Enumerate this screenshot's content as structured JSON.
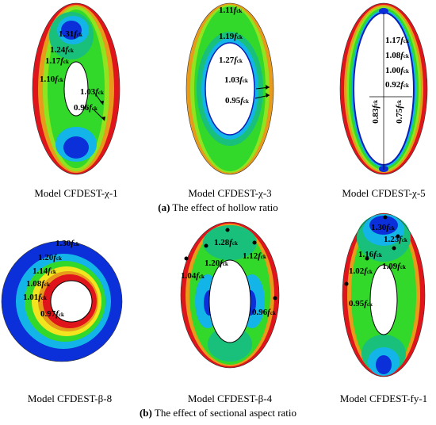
{
  "colors": {
    "red": "#e0141b",
    "orange": "#e89a1a",
    "yellow": "#f2e51f",
    "lime": "#8fe31f",
    "green": "#32d82a",
    "teal": "#18c07c",
    "cyan": "#13b5e8",
    "blue": "#0b2fd8",
    "navy": "#0a1fb8",
    "white": "#ffffff"
  },
  "panel_a": {
    "caption_prefix": "(a)",
    "caption_text": " The effect of hollow ratio",
    "models": [
      {
        "label": "Model CFDEST-χ-1",
        "annotations": [
          {
            "num": "1.31",
            "sub": "ck"
          },
          {
            "num": "1.24",
            "sub": "ck"
          },
          {
            "num": "1.17",
            "sub": "ck"
          },
          {
            "num": "1.10",
            "sub": "ck"
          },
          {
            "num": "1.03",
            "sub": "ck"
          },
          {
            "num": "0.96",
            "sub": "ck"
          }
        ]
      },
      {
        "label": "Model CFDEST-χ-3",
        "annotations": [
          {
            "num": "1.11",
            "sub": "ck"
          },
          {
            "num": "1.19",
            "sub": "ck"
          },
          {
            "num": "1.27",
            "sub": "ck"
          },
          {
            "num": "1.03",
            "sub": "ck"
          },
          {
            "num": "0.95",
            "sub": "ck"
          }
        ]
      },
      {
        "label": "Model CFDEST-χ-5",
        "annotations": [
          {
            "num": "1.17",
            "sub": "ck"
          },
          {
            "num": "1.08",
            "sub": "ck"
          },
          {
            "num": "1.00",
            "sub": "ck"
          },
          {
            "num": "0.92",
            "sub": "ck"
          },
          {
            "num": "0.83",
            "sub": "ck"
          },
          {
            "num": "0.75",
            "sub": "ck"
          }
        ]
      }
    ]
  },
  "panel_b": {
    "caption_prefix": "(b)",
    "caption_text": " The effect of sectional aspect ratio",
    "models": [
      {
        "label": "Model CFDEST-β-8",
        "annotations": [
          {
            "num": "1.30",
            "sub": "ck"
          },
          {
            "num": "1.20",
            "sub": "ck"
          },
          {
            "num": "1.14",
            "sub": "ck"
          },
          {
            "num": "1.08",
            "sub": "ck"
          },
          {
            "num": "1.01",
            "sub": "ck"
          },
          {
            "num": "0.97",
            "sub": "ck"
          }
        ]
      },
      {
        "label": "Model CFDEST-β-4",
        "annotations": [
          {
            "num": "1.28",
            "sub": "ck"
          },
          {
            "num": "1.20",
            "sub": "ck"
          },
          {
            "num": "1.12",
            "sub": "ck"
          },
          {
            "num": "1.04",
            "sub": "ck"
          },
          {
            "num": "0.96",
            "sub": "ck"
          }
        ]
      },
      {
        "label": "Model CFDEST-fy-1",
        "annotations": [
          {
            "num": "1.30",
            "sub": "ck"
          },
          {
            "num": "1.23",
            "sub": "ck"
          },
          {
            "num": "1.16",
            "sub": "ck"
          },
          {
            "num": "1.09",
            "sub": "ck"
          },
          {
            "num": "1.02",
            "sub": "ck"
          },
          {
            "num": "0.95",
            "sub": "ck"
          }
        ]
      }
    ]
  },
  "f_symbol": "f"
}
